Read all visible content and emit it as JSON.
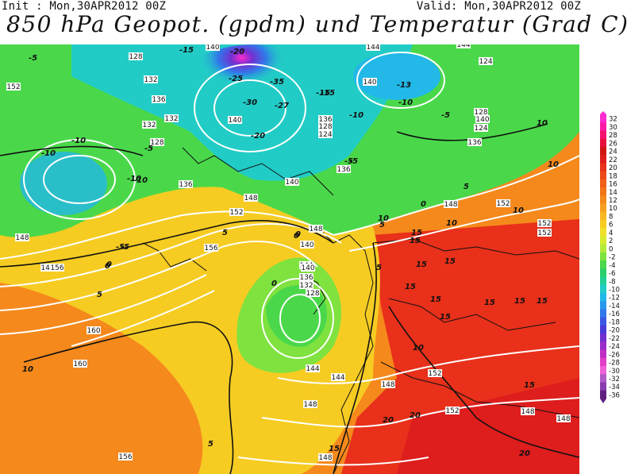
{
  "header": {
    "init_text": "Init : Mon,30APR2012 00Z",
    "valid_text": "Valid: Mon,30APR2012 00Z",
    "title": "850 hPa Geopot. (gpdm) und Temperatur (Grad C)"
  },
  "legend": {
    "values": [
      "32",
      "30",
      "28",
      "26",
      "24",
      "22",
      "20",
      "18",
      "16",
      "14",
      "12",
      "10",
      "8",
      "6",
      "4",
      "2",
      "0",
      "-2",
      "-4",
      "-6",
      "-8",
      "-10",
      "-12",
      "-14",
      "-16",
      "-18",
      "-20",
      "-22",
      "-24",
      "-26",
      "-28",
      "-30",
      "-32",
      "-34",
      "-36"
    ],
    "colors": [
      "#ff2bd0",
      "#ff1aa6",
      "#f7116f",
      "#e8103e",
      "#d01515",
      "#de1d1d",
      "#e8301a",
      "#ec4a18",
      "#f05f17",
      "#f27419",
      "#f5891c",
      "#f7a01f",
      "#f9b722",
      "#f6cc22",
      "#f0e02a",
      "#d6ea2f",
      "#b3ea3a",
      "#7fe23f",
      "#4ad84a",
      "#2bd06a",
      "#24cf96",
      "#22ccc6",
      "#22b8e8",
      "#2a98ec",
      "#3178ea",
      "#3a58e4",
      "#4a3ad8",
      "#7230d0",
      "#9a2ecb",
      "#c02ec6",
      "#e23ec8",
      "#f060d8",
      "#b05ac8",
      "#8a3cb0",
      "#602080"
    ]
  },
  "map_labels": {
    "geopotential": [
      "128",
      "140",
      "148",
      "152",
      "132",
      "136",
      "140",
      "144",
      "140",
      "148",
      "136",
      "128",
      "124",
      "136",
      "140",
      "144",
      "148",
      "152",
      "156",
      "160",
      "160",
      "156",
      "148",
      "144",
      "140",
      "136",
      "128",
      "132",
      "148",
      "152",
      "152",
      "144",
      "144",
      "148",
      "148",
      "124",
      "128",
      "132",
      "136",
      "140",
      "152",
      "152",
      "148",
      "152",
      "148",
      "124",
      "128",
      "132",
      "136",
      "140",
      "148",
      "156"
    ],
    "temperature": [
      "-5",
      "-10",
      "-10",
      "-5",
      "0",
      "-5",
      "-10",
      "-15",
      "-20",
      "-25",
      "-35",
      "-30",
      "-27",
      "-20",
      "-15",
      "-10",
      "-5",
      "0",
      "5",
      "10",
      "5",
      "0",
      "-5",
      "-10",
      "-15",
      "-13",
      "-10",
      "-5",
      "0",
      "5",
      "10",
      "5",
      "10",
      "15",
      "15",
      "15",
      "15",
      "15",
      "15",
      "15",
      "15",
      "15",
      "10",
      "15",
      "20",
      "20",
      "15",
      "20",
      "10",
      "5",
      "0",
      "10",
      "-5",
      "0",
      "10",
      "15",
      "5"
    ]
  }
}
